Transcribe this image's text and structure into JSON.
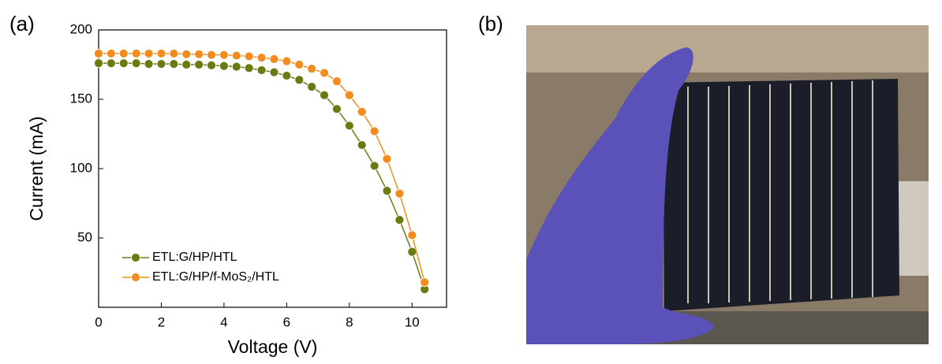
{
  "panel_labels": [
    "(a)",
    "(b)"
  ],
  "chart_data": {
    "type": "line",
    "x_label": "Voltage (V)",
    "y_label": "Current (mA)",
    "x": [
      0,
      0.4,
      0.8,
      1.2,
      1.6,
      2.0,
      2.4,
      2.8,
      3.2,
      3.6,
      4.0,
      4.4,
      4.8,
      5.2,
      5.6,
      6.0,
      6.4,
      6.8,
      7.2,
      7.6,
      8.0,
      8.4,
      8.8,
      9.2,
      9.6,
      10.0,
      10.4
    ],
    "series": [
      {
        "name": "ETL:G/HP/HTL",
        "color": "#6b7a12",
        "values": [
          176,
          176,
          176,
          176,
          175.5,
          175.5,
          175.5,
          175,
          175,
          174.5,
          174,
          173.5,
          172.5,
          171,
          169.5,
          167,
          164,
          159,
          153,
          143,
          131,
          117,
          102,
          84,
          63,
          40,
          13
        ]
      },
      {
        "name": "ETL:G/HP/f-MoS₂/HTL",
        "color": "#f28c1e",
        "values": [
          183,
          183,
          183,
          183,
          183,
          183,
          183,
          182.5,
          182.5,
          182,
          182,
          181.5,
          181,
          180,
          179,
          177.5,
          175,
          172,
          169,
          163,
          153,
          141,
          127,
          107,
          82,
          52,
          18
        ]
      }
    ],
    "xlim": [
      0,
      11.1
    ],
    "ylim": [
      0,
      200
    ],
    "xticks": [
      0,
      2,
      4,
      6,
      8,
      10
    ],
    "yticks": [
      50,
      100,
      150,
      200
    ],
    "legend": "lower-left"
  }
}
